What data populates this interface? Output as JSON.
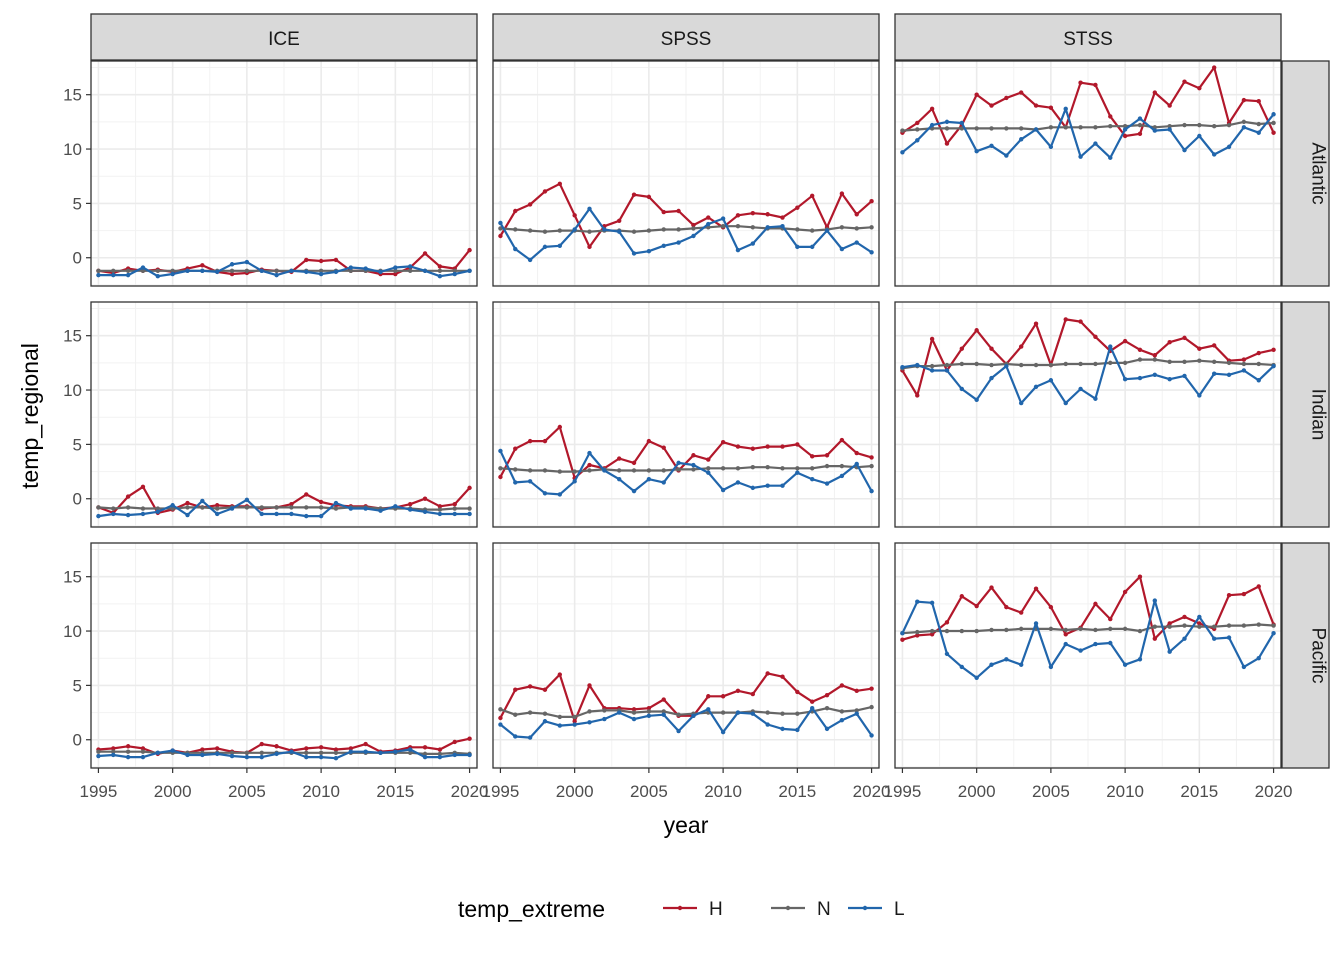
{
  "chart_data": {
    "type": "line",
    "facets": {
      "cols": [
        "ICE",
        "SPSS",
        "STSS"
      ],
      "rows": [
        "Atlantic",
        "Indian",
        "Pacific"
      ]
    },
    "x": [
      1995,
      1996,
      1997,
      1998,
      1999,
      2000,
      2001,
      2002,
      2003,
      2004,
      2005,
      2006,
      2007,
      2008,
      2009,
      2010,
      2011,
      2012,
      2013,
      2014,
      2015,
      2016,
      2017,
      2018,
      2019,
      2020
    ],
    "xlabel": "year",
    "ylabel": "temp_regional",
    "xlim": [
      1994.5,
      2020.5
    ],
    "ylim": [
      -2.6,
      18.1
    ],
    "xticks": [
      1995,
      2000,
      2005,
      2010,
      2015,
      2020
    ],
    "yticks": [
      0,
      5,
      10,
      15
    ],
    "grid": true,
    "legend": {
      "title": "temp_extreme",
      "position": "bottom",
      "entries": [
        {
          "label": "H",
          "color": "#B2182B"
        },
        {
          "label": "N",
          "color": "#666666"
        },
        {
          "label": "L",
          "color": "#2166AC"
        }
      ]
    },
    "panels": [
      {
        "col": "ICE",
        "row": "Atlantic",
        "series": [
          {
            "name": "H",
            "values": [
              -1.2,
              -1.4,
              -1.0,
              -1.2,
              -1.1,
              -1.3,
              -1.0,
              -0.7,
              -1.3,
              -1.5,
              -1.4,
              -1.1,
              -1.2,
              -1.3,
              -0.2,
              -0.3,
              -0.2,
              -1.2,
              -1.2,
              -1.5,
              -1.5,
              -0.9,
              0.4,
              -0.8,
              -1.0,
              0.7
            ]
          },
          {
            "name": "N",
            "values": [
              -1.2,
              -1.2,
              -1.2,
              -1.2,
              -1.2,
              -1.2,
              -1.2,
              -1.2,
              -1.2,
              -1.2,
              -1.2,
              -1.2,
              -1.2,
              -1.2,
              -1.2,
              -1.2,
              -1.2,
              -1.2,
              -1.2,
              -1.2,
              -1.2,
              -1.2,
              -1.2,
              -1.2,
              -1.2,
              -1.2
            ]
          },
          {
            "name": "L",
            "values": [
              -1.6,
              -1.6,
              -1.6,
              -0.9,
              -1.7,
              -1.5,
              -1.2,
              -1.2,
              -1.3,
              -0.6,
              -0.4,
              -1.2,
              -1.6,
              -1.2,
              -1.3,
              -1.5,
              -1.3,
              -0.9,
              -1.0,
              -1.3,
              -0.9,
              -0.8,
              -1.2,
              -1.7,
              -1.5,
              -1.2
            ]
          }
        ]
      },
      {
        "col": "SPSS",
        "row": "Atlantic",
        "series": [
          {
            "name": "H",
            "values": [
              2.0,
              4.3,
              4.9,
              6.1,
              6.8,
              3.9,
              1.0,
              2.9,
              3.4,
              5.8,
              5.6,
              4.2,
              4.3,
              3.0,
              3.7,
              2.8,
              3.9,
              4.1,
              4.0,
              3.7,
              4.6,
              5.7,
              2.8,
              5.9,
              4.0,
              5.2
            ]
          },
          {
            "name": "N",
            "values": [
              2.7,
              2.6,
              2.5,
              2.4,
              2.5,
              2.5,
              2.4,
              2.5,
              2.5,
              2.4,
              2.5,
              2.6,
              2.6,
              2.7,
              2.8,
              2.9,
              2.9,
              2.8,
              2.7,
              2.7,
              2.6,
              2.5,
              2.6,
              2.8,
              2.7,
              2.8
            ]
          },
          {
            "name": "L",
            "values": [
              3.2,
              0.8,
              -0.2,
              1.0,
              1.1,
              2.6,
              4.5,
              2.6,
              2.4,
              0.4,
              0.6,
              1.1,
              1.4,
              2.0,
              3.1,
              3.6,
              0.7,
              1.3,
              2.8,
              2.9,
              1.0,
              1.0,
              2.5,
              0.8,
              1.4,
              0.5
            ]
          }
        ]
      },
      {
        "col": "STSS",
        "row": "Atlantic",
        "series": [
          {
            "name": "H",
            "values": [
              11.5,
              12.4,
              13.7,
              10.5,
              12.2,
              15.0,
              14.0,
              14.7,
              15.2,
              14.0,
              13.8,
              12.0,
              16.1,
              15.9,
              13.0,
              11.2,
              11.4,
              15.2,
              14.0,
              16.2,
              15.6,
              17.5,
              12.4,
              14.5,
              14.4,
              11.5
            ]
          },
          {
            "name": "N",
            "values": [
              11.7,
              11.8,
              11.9,
              11.9,
              11.9,
              11.9,
              11.9,
              11.9,
              11.9,
              11.8,
              12.0,
              12.0,
              12.0,
              12.0,
              12.1,
              12.1,
              12.2,
              12.0,
              12.1,
              12.2,
              12.2,
              12.1,
              12.2,
              12.5,
              12.3,
              12.4
            ]
          },
          {
            "name": "L",
            "values": [
              9.7,
              10.8,
              12.2,
              12.5,
              12.4,
              9.8,
              10.3,
              9.4,
              10.9,
              11.8,
              10.2,
              13.7,
              9.3,
              10.5,
              9.2,
              11.8,
              12.8,
              11.7,
              11.8,
              9.9,
              11.2,
              9.5,
              10.2,
              12.0,
              11.5,
              13.2
            ]
          }
        ]
      },
      {
        "col": "ICE",
        "row": "Indian",
        "series": [
          {
            "name": "H",
            "values": [
              -0.8,
              -1.3,
              0.2,
              1.1,
              -1.3,
              -1.0,
              -0.4,
              -0.8,
              -0.6,
              -0.7,
              -0.7,
              -0.9,
              -0.8,
              -0.5,
              0.4,
              -0.3,
              -0.6,
              -0.7,
              -0.7,
              -0.9,
              -0.8,
              -0.5,
              0.0,
              -0.7,
              -0.5,
              1.0
            ]
          },
          {
            "name": "N",
            "values": [
              -0.8,
              -0.9,
              -0.8,
              -0.9,
              -0.9,
              -0.9,
              -0.8,
              -0.8,
              -0.9,
              -0.8,
              -0.8,
              -0.8,
              -0.8,
              -0.8,
              -0.8,
              -0.8,
              -0.9,
              -0.8,
              -0.8,
              -0.9,
              -0.9,
              -0.9,
              -1.0,
              -1.0,
              -0.9,
              -0.9
            ]
          },
          {
            "name": "L",
            "values": [
              -1.6,
              -1.4,
              -1.5,
              -1.4,
              -1.2,
              -0.6,
              -1.5,
              -0.2,
              -1.4,
              -0.9,
              -0.1,
              -1.4,
              -1.4,
              -1.4,
              -1.6,
              -1.6,
              -0.4,
              -0.9,
              -0.9,
              -1.1,
              -0.7,
              -1.0,
              -1.2,
              -1.4,
              -1.4,
              -1.4
            ]
          }
        ]
      },
      {
        "col": "SPSS",
        "row": "Indian",
        "series": [
          {
            "name": "H",
            "values": [
              2.0,
              4.6,
              5.3,
              5.3,
              6.6,
              1.9,
              3.1,
              2.8,
              3.7,
              3.3,
              5.3,
              4.7,
              2.6,
              4.0,
              3.6,
              5.2,
              4.8,
              4.6,
              4.8,
              4.8,
              5.0,
              3.9,
              4.0,
              5.4,
              4.2,
              3.8
            ]
          },
          {
            "name": "N",
            "values": [
              2.8,
              2.7,
              2.6,
              2.6,
              2.5,
              2.5,
              2.6,
              2.7,
              2.6,
              2.6,
              2.6,
              2.6,
              2.7,
              2.7,
              2.8,
              2.8,
              2.8,
              2.9,
              2.9,
              2.8,
              2.8,
              2.8,
              3.0,
              3.0,
              2.9,
              3.0
            ]
          },
          {
            "name": "L",
            "values": [
              4.4,
              1.5,
              1.6,
              0.5,
              0.4,
              1.6,
              4.2,
              2.6,
              1.8,
              0.7,
              1.8,
              1.5,
              3.3,
              3.1,
              2.4,
              0.8,
              1.5,
              1.0,
              1.2,
              1.2,
              2.4,
              1.8,
              1.4,
              2.1,
              3.2,
              0.7
            ]
          }
        ]
      },
      {
        "col": "STSS",
        "row": "Indian",
        "series": [
          {
            "name": "H",
            "values": [
              11.8,
              9.5,
              14.7,
              11.8,
              13.8,
              15.5,
              13.8,
              12.4,
              14.0,
              16.1,
              12.3,
              16.5,
              16.3,
              14.9,
              13.6,
              14.5,
              13.7,
              13.2,
              14.4,
              14.8,
              13.8,
              14.1,
              12.7,
              12.8,
              13.4,
              13.7
            ]
          },
          {
            "name": "N",
            "values": [
              12.0,
              12.2,
              12.2,
              12.3,
              12.4,
              12.4,
              12.3,
              12.4,
              12.3,
              12.3,
              12.3,
              12.4,
              12.4,
              12.4,
              12.5,
              12.5,
              12.8,
              12.8,
              12.6,
              12.6,
              12.7,
              12.6,
              12.5,
              12.4,
              12.4,
              12.3
            ]
          },
          {
            "name": "L",
            "values": [
              12.1,
              12.3,
              11.8,
              11.8,
              10.1,
              9.1,
              11.1,
              12.2,
              8.8,
              10.3,
              10.9,
              8.8,
              10.1,
              9.2,
              14.0,
              11.0,
              11.1,
              11.4,
              11.0,
              11.3,
              9.5,
              11.5,
              11.4,
              11.8,
              10.9,
              12.2
            ]
          }
        ]
      },
      {
        "col": "ICE",
        "row": "Pacific",
        "series": [
          {
            "name": "H",
            "values": [
              -0.9,
              -0.8,
              -0.6,
              -0.8,
              -1.3,
              -1.0,
              -1.2,
              -0.9,
              -0.8,
              -1.1,
              -1.2,
              -0.4,
              -0.6,
              -1.0,
              -0.8,
              -0.7,
              -0.9,
              -0.8,
              -0.4,
              -1.1,
              -1.0,
              -0.7,
              -0.7,
              -0.9,
              -0.2,
              0.1
            ]
          },
          {
            "name": "N",
            "values": [
              -1.1,
              -1.1,
              -1.1,
              -1.1,
              -1.2,
              -1.2,
              -1.2,
              -1.2,
              -1.2,
              -1.2,
              -1.2,
              -1.2,
              -1.2,
              -1.2,
              -1.2,
              -1.2,
              -1.2,
              -1.2,
              -1.2,
              -1.2,
              -1.2,
              -1.2,
              -1.3,
              -1.3,
              -1.2,
              -1.3
            ]
          },
          {
            "name": "L",
            "values": [
              -1.5,
              -1.4,
              -1.6,
              -1.6,
              -1.2,
              -1.0,
              -1.4,
              -1.4,
              -1.3,
              -1.5,
              -1.6,
              -1.6,
              -1.3,
              -1.1,
              -1.6,
              -1.6,
              -1.7,
              -1.1,
              -1.1,
              -1.2,
              -1.1,
              -0.9,
              -1.6,
              -1.6,
              -1.4,
              -1.4
            ]
          }
        ]
      },
      {
        "col": "SPSS",
        "row": "Pacific",
        "series": [
          {
            "name": "H",
            "values": [
              2.0,
              4.6,
              4.9,
              4.6,
              6.0,
              1.7,
              5.0,
              2.9,
              2.9,
              2.8,
              2.9,
              3.7,
              2.2,
              2.2,
              4.0,
              4.0,
              4.5,
              4.2,
              6.1,
              5.8,
              4.4,
              3.5,
              4.1,
              5.0,
              4.5,
              4.7
            ]
          },
          {
            "name": "N",
            "values": [
              2.8,
              2.3,
              2.5,
              2.4,
              2.1,
              2.1,
              2.6,
              2.7,
              2.7,
              2.5,
              2.6,
              2.6,
              2.3,
              2.4,
              2.5,
              2.5,
              2.5,
              2.6,
              2.5,
              2.4,
              2.4,
              2.6,
              2.9,
              2.6,
              2.7,
              3.0
            ]
          },
          {
            "name": "L",
            "values": [
              1.4,
              0.3,
              0.2,
              1.7,
              1.3,
              1.4,
              1.6,
              1.9,
              2.5,
              1.9,
              2.2,
              2.3,
              0.8,
              2.2,
              2.8,
              0.7,
              2.5,
              2.4,
              1.4,
              1.0,
              0.9,
              2.9,
              1.0,
              1.8,
              2.4,
              0.4
            ]
          }
        ]
      },
      {
        "col": "STSS",
        "row": "Pacific",
        "series": [
          {
            "name": "H",
            "values": [
              9.2,
              9.6,
              9.7,
              10.8,
              13.2,
              12.3,
              14.0,
              12.2,
              11.7,
              13.9,
              12.2,
              9.7,
              10.3,
              12.5,
              11.1,
              13.6,
              15.0,
              9.3,
              10.7,
              11.3,
              10.7,
              10.2,
              13.3,
              13.4,
              14.1,
              10.6
            ]
          },
          {
            "name": "N",
            "values": [
              9.8,
              9.9,
              10.0,
              10.0,
              10.0,
              10.0,
              10.1,
              10.1,
              10.2,
              10.2,
              10.2,
              10.1,
              10.2,
              10.1,
              10.2,
              10.2,
              10.0,
              10.4,
              10.4,
              10.5,
              10.4,
              10.4,
              10.5,
              10.5,
              10.6,
              10.5
            ]
          },
          {
            "name": "L",
            "values": [
              9.8,
              12.7,
              12.6,
              7.9,
              6.7,
              5.7,
              6.9,
              7.4,
              6.9,
              10.7,
              6.7,
              8.8,
              8.2,
              8.8,
              8.9,
              6.9,
              7.4,
              12.8,
              8.1,
              9.3,
              11.3,
              9.3,
              9.4,
              6.7,
              7.5,
              9.8
            ]
          }
        ]
      }
    ]
  }
}
